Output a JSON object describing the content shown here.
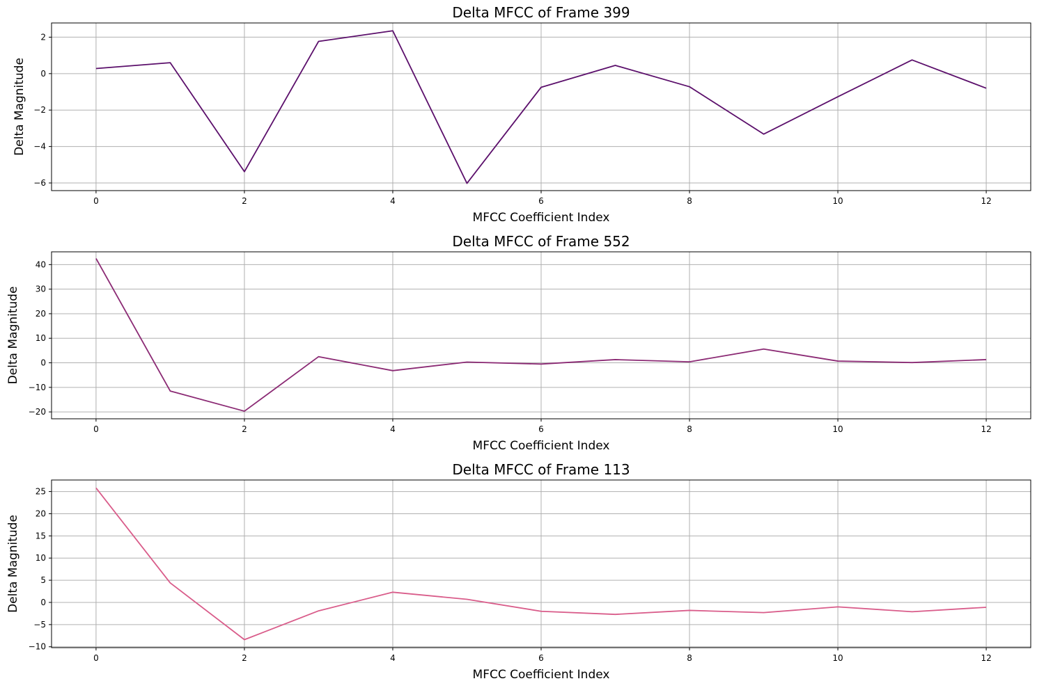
{
  "chart_data": [
    {
      "type": "line",
      "title": "Delta MFCC of Frame 399",
      "xlabel": "MFCC Coefficient Index",
      "ylabel": "Delta Magnitude",
      "color": "#5b0f6b",
      "grid": true,
      "x": [
        0,
        1,
        2,
        3,
        4,
        5,
        6,
        7,
        8,
        9,
        10,
        11,
        12
      ],
      "values": [
        0.28,
        0.6,
        -5.38,
        1.77,
        2.35,
        -6.02,
        -0.75,
        0.45,
        -0.72,
        -3.32,
        -1.27,
        0.75,
        -0.8
      ],
      "xlim": [
        -0.6,
        12.6
      ],
      "ylim": [
        -6.42,
        2.78
      ],
      "xticks": [
        0,
        2,
        4,
        6,
        8,
        10,
        12
      ],
      "yticks": [
        -6,
        -4,
        -2,
        0,
        2
      ]
    },
    {
      "type": "line",
      "title": "Delta MFCC of Frame 552",
      "xlabel": "MFCC Coefficient Index",
      "ylabel": "Delta Magnitude",
      "color": "#8b2a74",
      "grid": true,
      "x": [
        0,
        1,
        2,
        3,
        4,
        5,
        6,
        7,
        8,
        9,
        10,
        11,
        12
      ],
      "values": [
        42.5,
        -11.5,
        -19.7,
        2.5,
        -3.2,
        0.3,
        -0.5,
        1.3,
        0.4,
        5.6,
        0.7,
        0.1,
        1.3
      ],
      "xlim": [
        -0.6,
        12.6
      ],
      "ylim": [
        -22.8,
        45.2
      ],
      "xticks": [
        0,
        2,
        4,
        6,
        8,
        10,
        12
      ],
      "yticks": [
        -20,
        -10,
        0,
        10,
        20,
        30,
        40
      ]
    },
    {
      "type": "line",
      "title": "Delta MFCC of Frame 113",
      "xlabel": "MFCC Coefficient Index",
      "ylabel": "Delta Magnitude",
      "color": "#d95c8a",
      "grid": true,
      "x": [
        0,
        1,
        2,
        3,
        4,
        5,
        6,
        7,
        8,
        9,
        10,
        11,
        12
      ],
      "values": [
        25.8,
        4.4,
        -8.4,
        -1.9,
        2.3,
        0.7,
        -2.0,
        -2.7,
        -1.8,
        -2.3,
        -1.0,
        -2.1,
        -1.1
      ],
      "xlim": [
        -0.6,
        12.6
      ],
      "ylim": [
        -10.2,
        27.6
      ],
      "xticks": [
        0,
        2,
        4,
        6,
        8,
        10,
        12
      ],
      "yticks": [
        -10,
        -5,
        0,
        5,
        10,
        15,
        20,
        25
      ]
    }
  ]
}
